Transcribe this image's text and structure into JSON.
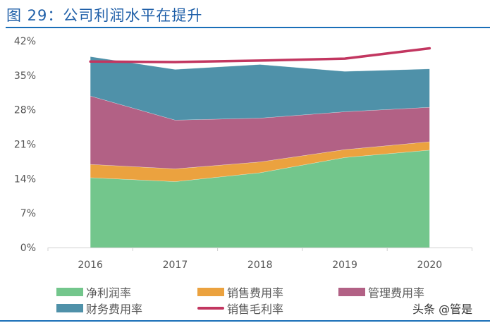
{
  "title": "图 29：公司利润水平在提升",
  "watermark": "头条 @管是",
  "chart_data": {
    "type": "area",
    "stacked": true,
    "categories": [
      "2016",
      "2017",
      "2018",
      "2019",
      "2020"
    ],
    "yticks": [
      "0%",
      "7%",
      "14%",
      "21%",
      "28%",
      "35%",
      "42%"
    ],
    "ylim": [
      0,
      42
    ],
    "grid": false,
    "legend_position": "bottom",
    "series": [
      {
        "name": "净利润率",
        "kind": "area",
        "color": "#73c68c",
        "values": [
          14.2,
          13.4,
          15.2,
          18.3,
          19.8
        ]
      },
      {
        "name": "销售费用率",
        "kind": "area",
        "color": "#eba23f",
        "values": [
          2.7,
          2.6,
          2.2,
          1.6,
          1.7
        ]
      },
      {
        "name": "管理费用率",
        "kind": "area",
        "color": "#b26185",
        "values": [
          13.9,
          9.9,
          8.9,
          7.7,
          7.0
        ]
      },
      {
        "name": "财务费用率",
        "kind": "area",
        "color": "#4f91a9",
        "values": [
          8.0,
          10.3,
          10.9,
          8.2,
          7.8
        ]
      },
      {
        "name": "销售毛利率",
        "kind": "line",
        "color": "#c23660",
        "values": [
          37.8,
          37.7,
          38.0,
          38.4,
          40.5
        ]
      }
    ]
  }
}
